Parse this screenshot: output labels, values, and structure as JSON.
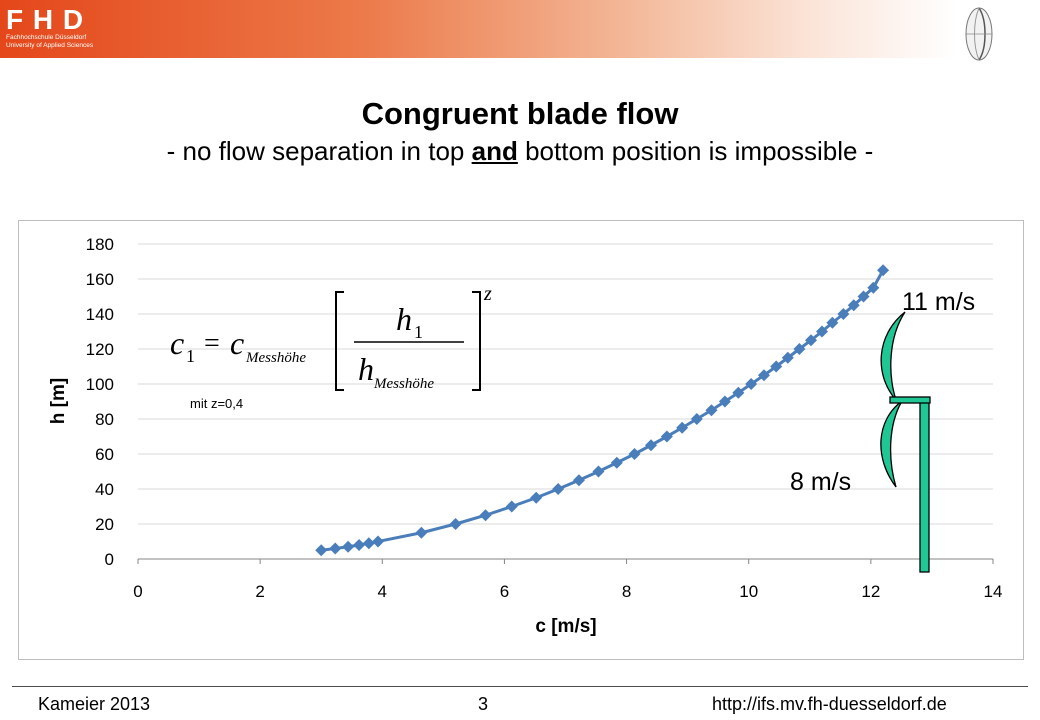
{
  "header": {
    "logo_text": "F H D",
    "logo_sub1": "Fachhochschule Düsseldorf",
    "logo_sub2": "University of Applied Sciences",
    "brand_color": "#e4471a",
    "emblem_icon": "fan-blade-emblem-icon"
  },
  "slide": {
    "title": "Congruent blade flow",
    "subtitle_pre": "- no flow separation in top ",
    "subtitle_em": "and",
    "subtitle_post": " bottom position is impossible -"
  },
  "formula": {
    "lhs": "c",
    "lhs_sub": "1",
    "rhs": "c",
    "rhs_sub": "Messhöhe",
    "num": "h",
    "num_sub": "1",
    "den": "h",
    "den_sub": "Messhöhe",
    "exp": "z",
    "note": "mit z=0,4"
  },
  "annotations": {
    "upper_speed": "11 m/s",
    "lower_speed": "8 m/s",
    "blade_color": "#1fc795"
  },
  "chart_data": {
    "type": "scatter",
    "xlabel": "c [m/s]",
    "ylabel": "h [m]",
    "xlim": [
      0,
      14
    ],
    "ylim": [
      0,
      180
    ],
    "xticks": [
      0,
      2,
      4,
      6,
      8,
      10,
      12,
      14
    ],
    "yticks": [
      0,
      20,
      40,
      60,
      80,
      100,
      120,
      140,
      160,
      180
    ],
    "grid": "horizontal",
    "series_color": "#4a7ebb",
    "marker": "diamond",
    "series": [
      {
        "x": [
          3.0,
          3.23,
          3.44,
          3.62,
          3.78,
          3.93,
          4.64,
          5.2,
          5.69,
          6.12,
          6.52,
          6.88,
          7.22,
          7.54,
          7.84,
          8.13,
          8.4,
          8.66,
          8.91,
          9.15,
          9.39,
          9.61,
          9.83,
          10.04,
          10.25,
          10.45,
          10.64,
          10.83,
          11.02,
          11.2,
          11.37,
          11.55,
          11.72,
          11.88,
          12.04,
          12.2
        ],
        "y": [
          5,
          6,
          7,
          8,
          9,
          10,
          15,
          20,
          25,
          30,
          35,
          40,
          45,
          50,
          55,
          60,
          65,
          70,
          75,
          80,
          85,
          90,
          95,
          100,
          105,
          110,
          115,
          120,
          125,
          130,
          135,
          140,
          145,
          150,
          155,
          165
        ]
      }
    ]
  },
  "footer": {
    "author": "Kameier 2013",
    "page": "3",
    "url": "http://ifs.mv.fh-duesseldorf.de"
  }
}
